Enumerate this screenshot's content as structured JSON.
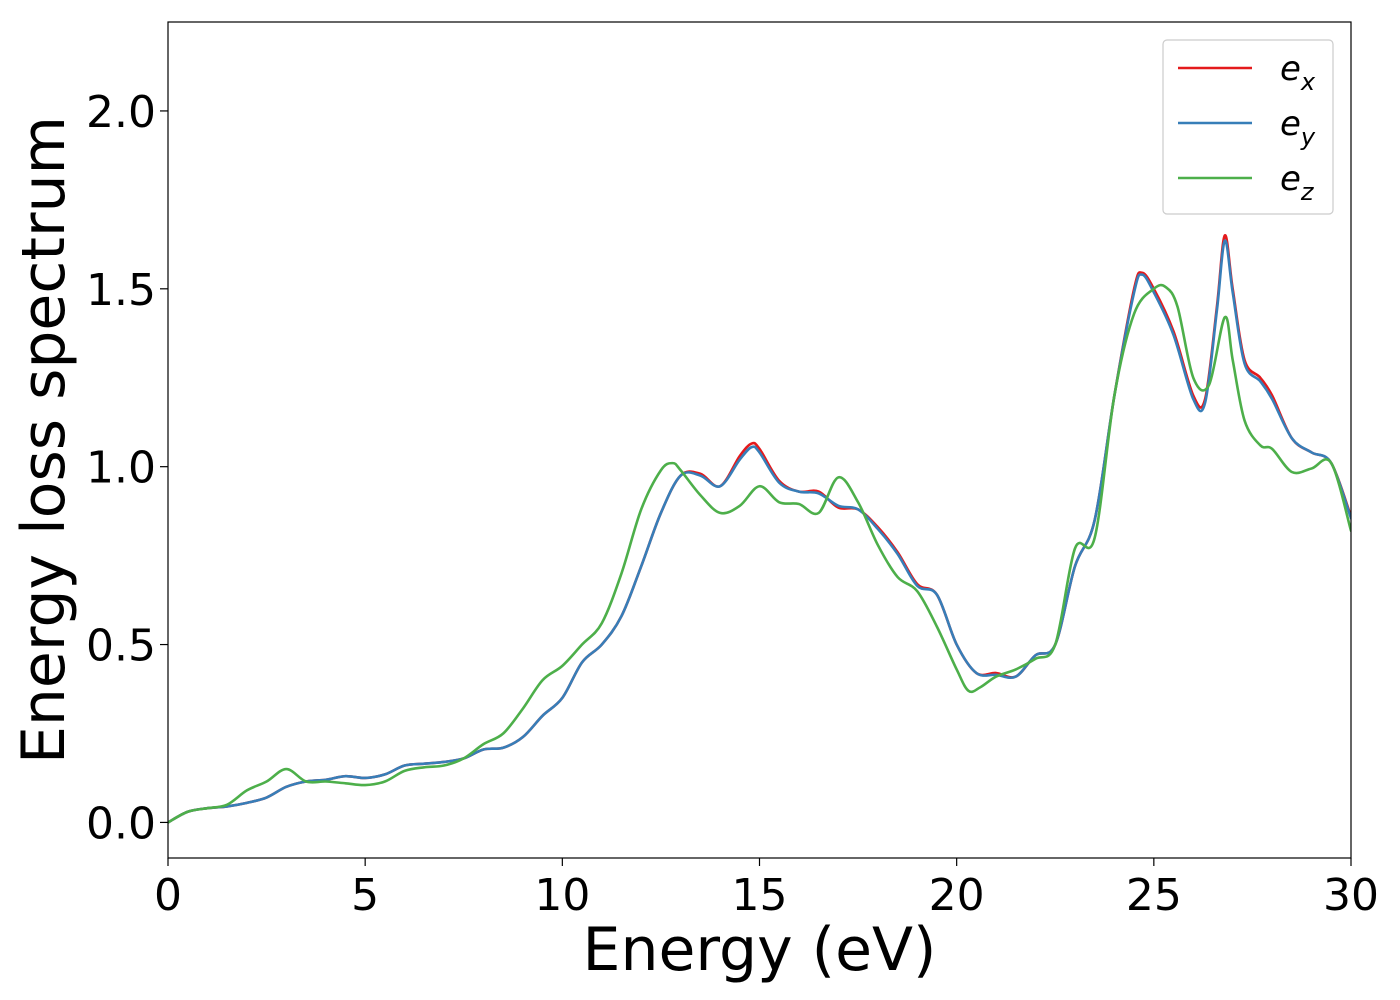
{
  "chart_data": {
    "type": "line",
    "title": "",
    "xlabel": "Energy (eV)",
    "ylabel": "Energy loss spectrum",
    "xlim": [
      0,
      30
    ],
    "ylim": [
      -0.1,
      2.25
    ],
    "xticks": [
      0,
      5,
      10,
      15,
      20,
      25,
      30
    ],
    "yticks": [
      0.0,
      0.5,
      1.0,
      1.5,
      2.0
    ],
    "xtick_labels": [
      "0",
      "5",
      "10",
      "15",
      "20",
      "25",
      "30"
    ],
    "ytick_labels": [
      "0.0",
      "0.5",
      "1.0",
      "1.5",
      "2.0"
    ],
    "grid": false,
    "legend_position": "top-right",
    "series": [
      {
        "name": "e_x",
        "label_base": "e",
        "label_sub": "x",
        "color": "#e41a1c",
        "x": [
          0,
          0.5,
          1,
          1.5,
          2,
          2.5,
          3,
          3.5,
          4,
          4.5,
          5,
          5.5,
          6,
          6.5,
          7,
          7.5,
          8,
          8.5,
          9,
          9.5,
          10,
          10.5,
          11,
          11.5,
          12,
          12.5,
          13,
          13.5,
          14,
          14.5,
          14.8,
          15,
          15.5,
          16,
          16.5,
          17,
          17.5,
          18,
          18.5,
          19,
          19.5,
          20,
          20.5,
          21,
          21.5,
          22,
          22.5,
          23,
          23.5,
          24,
          24.5,
          24.7,
          25,
          25.5,
          26,
          26.3,
          26.6,
          26.8,
          27,
          27.3,
          27.7,
          28,
          28.5,
          29,
          29.5,
          30
        ],
        "y": [
          0.0,
          0.03,
          0.04,
          0.045,
          0.055,
          0.07,
          0.1,
          0.115,
          0.12,
          0.13,
          0.125,
          0.135,
          0.16,
          0.165,
          0.17,
          0.18,
          0.205,
          0.21,
          0.24,
          0.3,
          0.35,
          0.45,
          0.5,
          0.58,
          0.72,
          0.87,
          0.975,
          0.98,
          0.945,
          1.03,
          1.065,
          1.05,
          0.96,
          0.93,
          0.93,
          0.885,
          0.88,
          0.83,
          0.76,
          0.67,
          0.64,
          0.5,
          0.42,
          0.42,
          0.41,
          0.47,
          0.5,
          0.72,
          0.85,
          1.2,
          1.5,
          1.545,
          1.5,
          1.38,
          1.2,
          1.19,
          1.45,
          1.65,
          1.5,
          1.3,
          1.25,
          1.2,
          1.08,
          1.04,
          1.01,
          0.86
        ]
      },
      {
        "name": "e_y",
        "label_base": "e",
        "label_sub": "y",
        "color": "#377eb8",
        "x": [
          0,
          0.5,
          1,
          1.5,
          2,
          2.5,
          3,
          3.5,
          4,
          4.5,
          5,
          5.5,
          6,
          6.5,
          7,
          7.5,
          8,
          8.5,
          9,
          9.5,
          10,
          10.5,
          11,
          11.5,
          12,
          12.5,
          13,
          13.5,
          14,
          14.5,
          14.8,
          15,
          15.5,
          16,
          16.5,
          17,
          17.5,
          18,
          18.5,
          19,
          19.5,
          20,
          20.5,
          21,
          21.5,
          22,
          22.5,
          23,
          23.5,
          24,
          24.5,
          24.7,
          25,
          25.5,
          26,
          26.3,
          26.6,
          26.8,
          27,
          27.3,
          27.7,
          28,
          28.5,
          29,
          29.5,
          30
        ],
        "y": [
          0.0,
          0.03,
          0.04,
          0.045,
          0.055,
          0.07,
          0.1,
          0.115,
          0.12,
          0.13,
          0.125,
          0.135,
          0.16,
          0.165,
          0.17,
          0.18,
          0.205,
          0.21,
          0.24,
          0.3,
          0.35,
          0.45,
          0.5,
          0.58,
          0.72,
          0.87,
          0.975,
          0.975,
          0.945,
          1.02,
          1.055,
          1.04,
          0.955,
          0.93,
          0.925,
          0.89,
          0.88,
          0.825,
          0.755,
          0.665,
          0.64,
          0.5,
          0.42,
          0.415,
          0.41,
          0.47,
          0.5,
          0.72,
          0.85,
          1.2,
          1.49,
          1.54,
          1.49,
          1.37,
          1.19,
          1.18,
          1.44,
          1.635,
          1.49,
          1.29,
          1.24,
          1.19,
          1.08,
          1.04,
          1.01,
          0.855
        ]
      },
      {
        "name": "e_z",
        "label_base": "e",
        "label_sub": "z",
        "color": "#4daf4a",
        "x": [
          0,
          0.5,
          1,
          1.5,
          2,
          2.5,
          3,
          3.5,
          4,
          4.5,
          5,
          5.5,
          6,
          6.5,
          7,
          7.5,
          8,
          8.5,
          9,
          9.5,
          10,
          10.5,
          11,
          11.5,
          12,
          12.5,
          12.8,
          13,
          13.5,
          14,
          14.5,
          15,
          15.5,
          16,
          16.5,
          17,
          17.5,
          18,
          18.5,
          19,
          19.5,
          20,
          20.3,
          20.6,
          21,
          21.5,
          22,
          22.5,
          23,
          23.5,
          24,
          24.5,
          25,
          25.3,
          25.6,
          26,
          26.4,
          26.8,
          27,
          27.3,
          27.7,
          28,
          28.5,
          29,
          29.5,
          30
        ],
        "y": [
          0.0,
          0.03,
          0.04,
          0.05,
          0.09,
          0.115,
          0.15,
          0.115,
          0.115,
          0.11,
          0.105,
          0.115,
          0.145,
          0.155,
          0.16,
          0.18,
          0.22,
          0.25,
          0.32,
          0.4,
          0.44,
          0.5,
          0.56,
          0.7,
          0.88,
          0.99,
          1.01,
          0.99,
          0.92,
          0.87,
          0.89,
          0.945,
          0.9,
          0.895,
          0.87,
          0.97,
          0.9,
          0.78,
          0.69,
          0.65,
          0.55,
          0.43,
          0.37,
          0.38,
          0.41,
          0.43,
          0.46,
          0.5,
          0.77,
          0.8,
          1.2,
          1.43,
          1.5,
          1.505,
          1.45,
          1.25,
          1.23,
          1.42,
          1.3,
          1.13,
          1.06,
          1.05,
          0.985,
          0.995,
          1.01,
          0.82
        ]
      }
    ]
  }
}
